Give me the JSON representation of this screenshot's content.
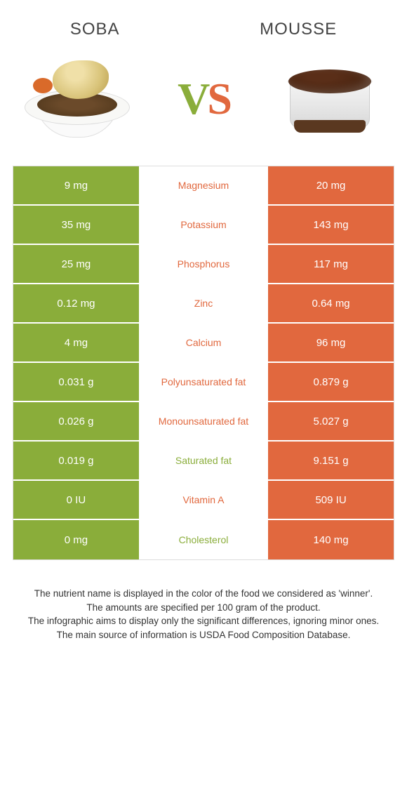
{
  "colors": {
    "green": "#8aad3a",
    "orange": "#e1683e",
    "white": "#ffffff"
  },
  "header": {
    "left_title": "soba",
    "right_title": "mousse"
  },
  "vs": {
    "v": "V",
    "s": "S"
  },
  "rows": [
    {
      "left": "9 mg",
      "label": "Magnesium",
      "right": "20 mg",
      "winner": "orange"
    },
    {
      "left": "35 mg",
      "label": "Potassium",
      "right": "143 mg",
      "winner": "orange"
    },
    {
      "left": "25 mg",
      "label": "Phosphorus",
      "right": "117 mg",
      "winner": "orange"
    },
    {
      "left": "0.12 mg",
      "label": "Zinc",
      "right": "0.64 mg",
      "winner": "orange"
    },
    {
      "left": "4 mg",
      "label": "Calcium",
      "right": "96 mg",
      "winner": "orange"
    },
    {
      "left": "0.031 g",
      "label": "Polyunsaturated fat",
      "right": "0.879 g",
      "winner": "orange"
    },
    {
      "left": "0.026 g",
      "label": "Monounsaturated fat",
      "right": "5.027 g",
      "winner": "orange"
    },
    {
      "left": "0.019 g",
      "label": "Saturated fat",
      "right": "9.151 g",
      "winner": "green"
    },
    {
      "left": "0 IU",
      "label": "Vitamin A",
      "right": "509 IU",
      "winner": "orange"
    },
    {
      "left": "0 mg",
      "label": "Cholesterol",
      "right": "140 mg",
      "winner": "green"
    }
  ],
  "footer": {
    "line1": "The nutrient name is displayed in the color of the food we considered as 'winner'.",
    "line2": "The amounts are specified per 100 gram of the product.",
    "line3": "The infographic aims to display only the significant differences, ignoring minor ones.",
    "line4": "The main source of information is USDA Food Composition Database."
  }
}
